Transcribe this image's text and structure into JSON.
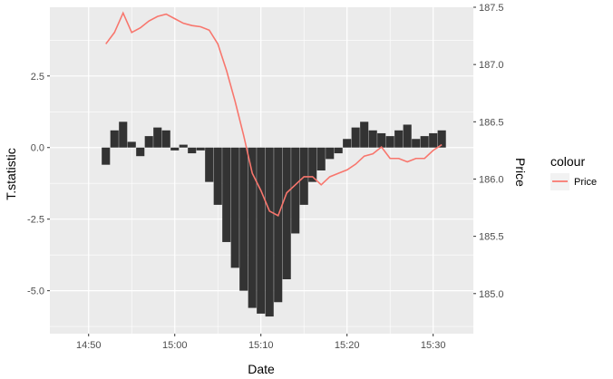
{
  "chart_data": {
    "type": "bar",
    "xlabel": "Date",
    "ylabel": "T.statistic",
    "y2label": "Price",
    "x_ticks": [
      "14:50",
      "15:00",
      "15:10",
      "15:20",
      "15:30"
    ],
    "x_range": [
      "14:45:30",
      "15:34:40"
    ],
    "ylim": [
      -6.5,
      4.9
    ],
    "y_ticks": [
      "-5.0",
      "-2.5",
      "0.0",
      "2.5"
    ],
    "y2lim": [
      184.65,
      187.5
    ],
    "y2_ticks": [
      "185.0",
      "185.5",
      "186.0",
      "186.5",
      "187.0",
      "187.5"
    ],
    "grid": true,
    "legend": {
      "title": "colour",
      "position": "right",
      "entries": [
        "Price"
      ]
    },
    "colors": {
      "panel": "#ebebeb",
      "grid": "#ffffff",
      "bars": "#333333",
      "price_line": "#f8766d"
    },
    "series": [
      {
        "kind": "bar",
        "x": [
          "14:52",
          "14:53",
          "14:54",
          "14:55",
          "14:56",
          "14:57",
          "14:58",
          "14:59",
          "15:00",
          "15:01",
          "15:02",
          "15:03",
          "15:04",
          "15:05",
          "15:06",
          "15:07",
          "15:08",
          "15:09",
          "15:10",
          "15:11",
          "15:12",
          "15:13",
          "15:14",
          "15:15",
          "15:16",
          "15:17",
          "15:18",
          "15:19",
          "15:20",
          "15:21",
          "15:22",
          "15:23",
          "15:24",
          "15:25",
          "15:26",
          "15:27",
          "15:28",
          "15:29",
          "15:30",
          "15:31"
        ],
        "values": [
          -0.6,
          0.6,
          0.9,
          0.2,
          -0.3,
          0.4,
          0.7,
          0.6,
          -0.1,
          0.1,
          -0.2,
          -0.1,
          -1.2,
          -2.0,
          -3.3,
          -4.2,
          -5.0,
          -5.6,
          -5.8,
          -5.9,
          -5.4,
          -4.6,
          -3.0,
          -2.0,
          -1.2,
          -0.8,
          -0.4,
          -0.2,
          0.3,
          0.7,
          0.9,
          0.6,
          0.5,
          0.4,
          0.6,
          0.8,
          0.3,
          0.4,
          0.5,
          0.6
        ]
      },
      {
        "kind": "line",
        "name": "Price",
        "x": [
          "14:52",
          "14:53",
          "14:54",
          "14:55",
          "14:56",
          "14:57",
          "14:58",
          "14:59",
          "15:00",
          "15:01",
          "15:02",
          "15:03",
          "15:04",
          "15:05",
          "15:06",
          "15:07",
          "15:08",
          "15:09",
          "15:10",
          "15:11",
          "15:12",
          "15:13",
          "15:14",
          "15:15",
          "15:16",
          "15:17",
          "15:18",
          "15:19",
          "15:20",
          "15:21",
          "15:22",
          "15:23",
          "15:24",
          "15:25",
          "15:26",
          "15:27",
          "15:28",
          "15:29",
          "15:30",
          "15:31"
        ],
        "values": [
          187.18,
          187.28,
          187.45,
          187.28,
          187.32,
          187.38,
          187.42,
          187.44,
          187.4,
          187.36,
          187.34,
          187.33,
          187.3,
          187.18,
          186.95,
          186.68,
          186.38,
          186.05,
          185.9,
          185.72,
          185.68,
          185.88,
          185.95,
          186.02,
          186.02,
          185.95,
          186.02,
          186.05,
          186.08,
          186.13,
          186.2,
          186.22,
          186.28,
          186.18,
          186.18,
          186.15,
          186.18,
          186.18,
          186.25,
          186.3
        ]
      }
    ]
  }
}
